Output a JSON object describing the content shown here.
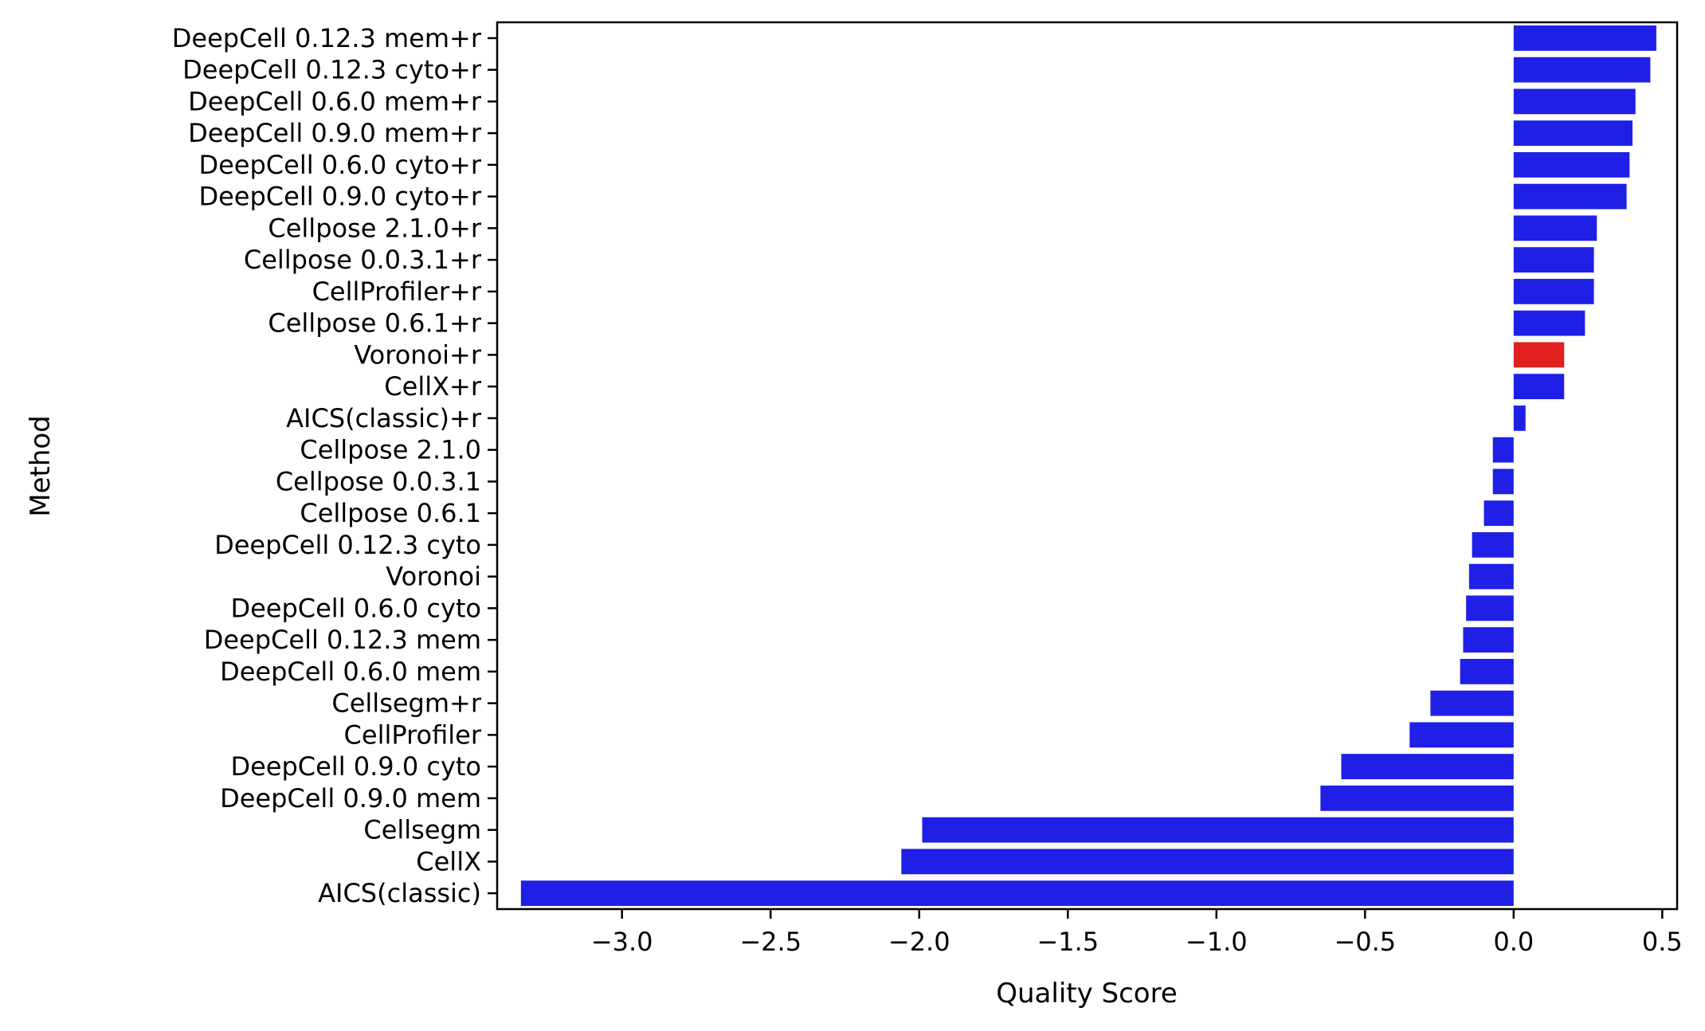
{
  "chart_data": {
    "type": "bar",
    "orientation": "horizontal",
    "xlabel": "Quality Score",
    "ylabel": "Method",
    "xlim": [
      -3.42,
      0.55
    ],
    "xticks": [
      -3.0,
      -2.5,
      -2.0,
      -1.5,
      -1.0,
      -0.5,
      0.0,
      0.5
    ],
    "xtick_labels": [
      "−3.0",
      "−2.5",
      "−2.0",
      "−1.5",
      "−1.0",
      "−0.5",
      "0.0",
      "0.5"
    ],
    "categories": [
      "DeepCell 0.12.3 mem+r",
      "DeepCell 0.12.3 cyto+r",
      "DeepCell 0.6.0 mem+r",
      "DeepCell 0.9.0 mem+r",
      "DeepCell 0.6.0 cyto+r",
      "DeepCell 0.9.0 cyto+r",
      "Cellpose 2.1.0+r",
      "Cellpose 0.0.3.1+r",
      "CellProfiler+r",
      "Cellpose 0.6.1+r",
      "Voronoi+r",
      "CellX+r",
      "AICS(classic)+r",
      "Cellpose 2.1.0",
      "Cellpose 0.0.3.1",
      "Cellpose 0.6.1",
      "DeepCell 0.12.3 cyto",
      "Voronoi",
      "DeepCell 0.6.0 cyto",
      "DeepCell 0.12.3 mem",
      "DeepCell 0.6.0 mem",
      "Cellsegm+r",
      "CellProfiler",
      "DeepCell 0.9.0 cyto",
      "DeepCell 0.9.0 mem",
      "Cellsegm",
      "CellX",
      "AICS(classic)"
    ],
    "values": [
      0.48,
      0.46,
      0.41,
      0.4,
      0.39,
      0.38,
      0.28,
      0.27,
      0.27,
      0.24,
      0.17,
      0.17,
      0.04,
      -0.07,
      -0.07,
      -0.1,
      -0.14,
      -0.15,
      -0.16,
      -0.17,
      -0.18,
      -0.28,
      -0.35,
      -0.58,
      -0.65,
      -1.99,
      -2.06,
      -3.34
    ],
    "highlight": [
      "Voronoi+r"
    ],
    "colors": {
      "bar": "#1f1fe5",
      "highlight": "#e01f1f",
      "axis": "#000000"
    }
  }
}
